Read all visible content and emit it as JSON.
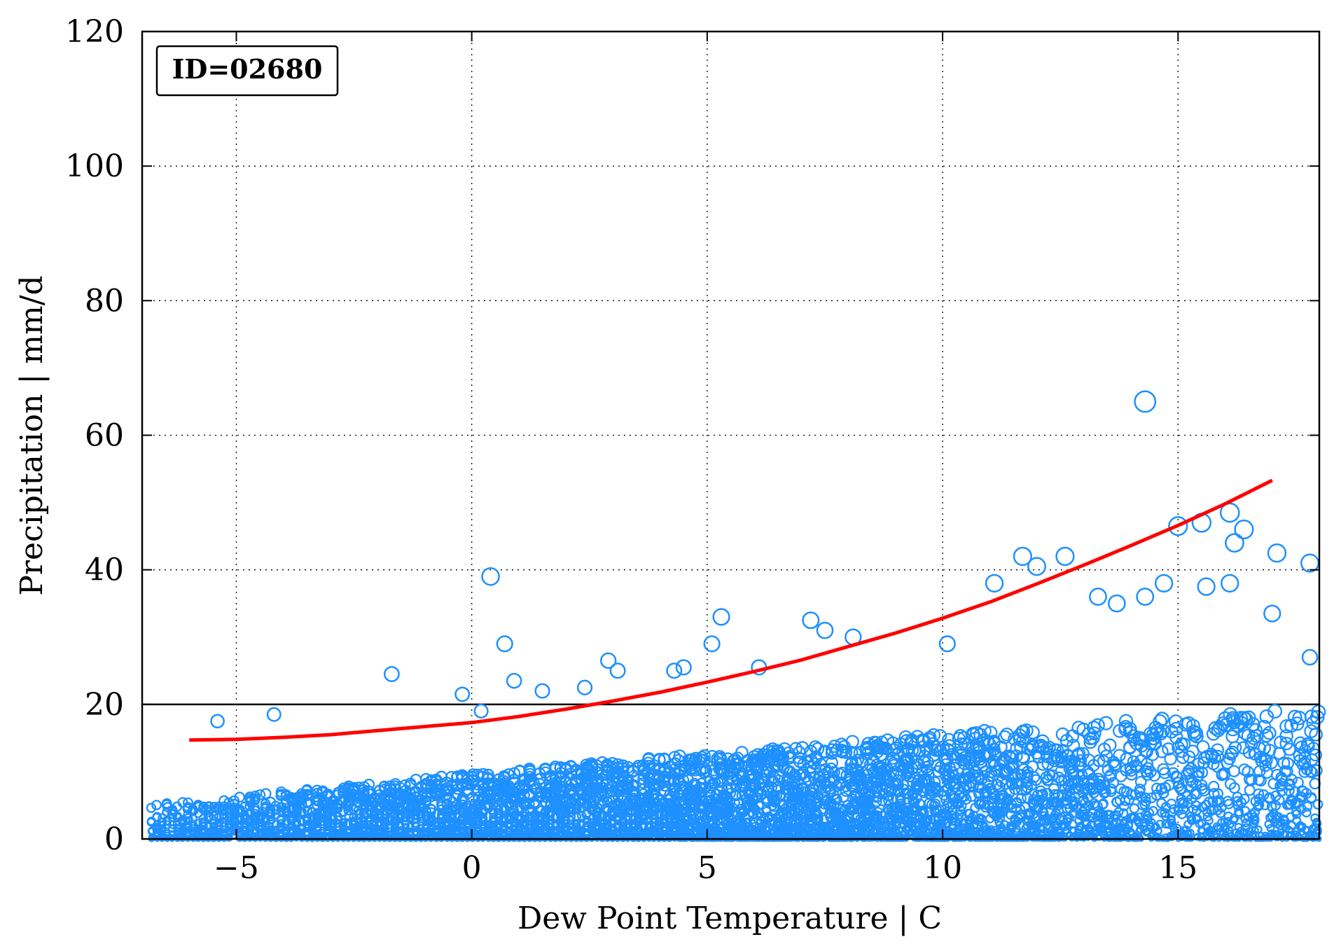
{
  "chart_data": {
    "type": "scatter",
    "title": "",
    "xlabel": "Dew Point Temperature | C",
    "ylabel": "Precipitation | mm/d",
    "xlim": [
      -7,
      18
    ],
    "ylim": [
      0,
      120
    ],
    "xticks": [
      -5,
      0,
      5,
      10,
      15
    ],
    "xtick_labels": [
      "−5",
      "0",
      "5",
      "10",
      "15"
    ],
    "yticks": [
      0,
      20,
      40,
      60,
      80,
      100,
      120
    ],
    "ytick_labels": [
      "0",
      "20",
      "40",
      "60",
      "80",
      "100",
      "120"
    ],
    "grid": true,
    "annotation": "ID=02680",
    "reference_line": {
      "y": 20,
      "color": "#000000"
    },
    "scatter_color": "#1e90ff",
    "fit_color": "#ff0000",
    "highlighted_points": [
      {
        "x": 14.3,
        "y": 65.0
      },
      {
        "x": 0.4,
        "y": 39.0
      },
      {
        "x": -1.7,
        "y": 24.5
      },
      {
        "x": 0.7,
        "y": 29.0
      },
      {
        "x": 0.9,
        "y": 23.5
      },
      {
        "x": -5.4,
        "y": 17.5
      },
      {
        "x": -4.2,
        "y": 18.5
      },
      {
        "x": -0.2,
        "y": 21.5
      },
      {
        "x": 0.2,
        "y": 19.0
      },
      {
        "x": 1.5,
        "y": 22.0
      },
      {
        "x": 2.4,
        "y": 22.5
      },
      {
        "x": 2.9,
        "y": 26.5
      },
      {
        "x": 3.1,
        "y": 25.0
      },
      {
        "x": 4.3,
        "y": 25.0
      },
      {
        "x": 4.5,
        "y": 25.5
      },
      {
        "x": 5.1,
        "y": 29.0
      },
      {
        "x": 5.3,
        "y": 33.0
      },
      {
        "x": 6.1,
        "y": 25.5
      },
      {
        "x": 7.2,
        "y": 32.5
      },
      {
        "x": 7.5,
        "y": 31.0
      },
      {
        "x": 8.1,
        "y": 30.0
      },
      {
        "x": 10.1,
        "y": 29.0
      },
      {
        "x": 11.1,
        "y": 38.0
      },
      {
        "x": 11.7,
        "y": 42.0
      },
      {
        "x": 12.0,
        "y": 40.5
      },
      {
        "x": 12.6,
        "y": 42.0
      },
      {
        "x": 13.3,
        "y": 36.0
      },
      {
        "x": 13.7,
        "y": 35.0
      },
      {
        "x": 14.3,
        "y": 36.0
      },
      {
        "x": 14.7,
        "y": 38.0
      },
      {
        "x": 15.0,
        "y": 46.5
      },
      {
        "x": 15.5,
        "y": 47.0
      },
      {
        "x": 15.6,
        "y": 37.5
      },
      {
        "x": 16.1,
        "y": 48.5
      },
      {
        "x": 16.2,
        "y": 44.0
      },
      {
        "x": 16.4,
        "y": 46.0
      },
      {
        "x": 17.1,
        "y": 42.5
      },
      {
        "x": 17.8,
        "y": 41.0
      },
      {
        "x": 16.1,
        "y": 38.0
      },
      {
        "x": 17.0,
        "y": 33.5
      },
      {
        "x": 17.8,
        "y": 27.0
      }
    ],
    "bulk_distribution": {
      "x_range": [
        -6.8,
        18.0
      ],
      "x_step": 0.11,
      "typical_max_y_at_xmin": 5.0,
      "typical_max_y_at_xmax": 20.0
    },
    "fit_curve": {
      "x": [
        -6.0,
        -5.0,
        -4.0,
        -3.0,
        -2.0,
        -1.0,
        0.0,
        1.0,
        2.0,
        3.0,
        4.0,
        5.0,
        6.0,
        7.0,
        8.0,
        9.0,
        10.0,
        11.0,
        12.0,
        13.0,
        14.0,
        15.0,
        16.0,
        17.0
      ],
      "y": [
        14.7,
        14.8,
        15.1,
        15.5,
        16.1,
        16.7,
        17.3,
        18.2,
        19.3,
        20.5,
        21.8,
        23.3,
        24.9,
        26.6,
        28.6,
        30.6,
        32.8,
        35.2,
        37.9,
        40.7,
        43.6,
        46.6,
        49.8,
        53.3
      ]
    }
  }
}
